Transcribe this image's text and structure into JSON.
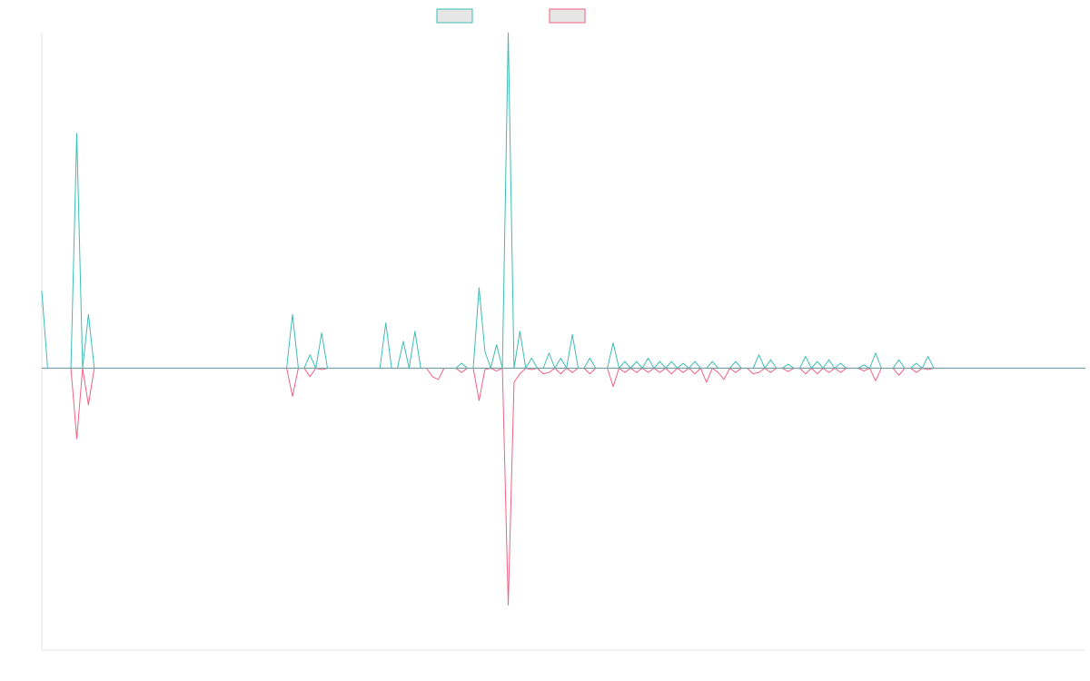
{
  "colors": {
    "series_a": "#3dbdb5",
    "series_b": "#f06283",
    "legend_fill": "#e6e6e6",
    "axis": "#e3e3e3",
    "baseline": "#7a9ea3"
  },
  "chart_data": {
    "type": "line",
    "title": "",
    "xlabel": "",
    "ylabel": "",
    "grid": false,
    "legend_position": "top-center",
    "x_count": 180,
    "ylim": [
      -1,
      1
    ],
    "series": [
      {
        "legend_color": "series_a",
        "sign": 1,
        "points": {
          "0": 0.23,
          "1": 0,
          "5": 0,
          "6": 0.7,
          "7": 0,
          "8": 0.16,
          "9": 0,
          "42": 0,
          "43": 0.16,
          "44": 0,
          "45": 0,
          "46": 0.04,
          "47": 0,
          "48": 0.105,
          "49": 0,
          "58": 0,
          "59": 0.135,
          "60": 0,
          "61": 0,
          "62": 0.08,
          "63": 0,
          "64": 0.11,
          "65": 0,
          "66": 0,
          "67": 0,
          "68": 0,
          "69": 0,
          "70": 0,
          "71": 0,
          "72": 0.015,
          "73": 0,
          "74": 0,
          "75": 0.24,
          "76": 0.05,
          "77": 0,
          "78": 0.07,
          "79": 0,
          "80": 1.0,
          "81": 0,
          "82": 0.11,
          "83": 0,
          "84": 0.03,
          "85": 0,
          "86": 0,
          "87": 0.045,
          "88": 0,
          "89": 0.03,
          "90": 0,
          "91": 0.1,
          "92": 0,
          "93": 0,
          "94": 0.03,
          "95": 0,
          "96": 0,
          "97": 0,
          "98": 0.075,
          "99": 0,
          "100": 0.02,
          "101": 0,
          "102": 0.02,
          "103": 0,
          "104": 0.03,
          "105": 0,
          "106": 0.02,
          "107": 0,
          "108": 0.02,
          "109": 0,
          "110": 0.015,
          "111": 0,
          "112": 0.02,
          "113": 0,
          "114": 0,
          "115": 0.02,
          "116": 0,
          "117": 0,
          "118": 0,
          "119": 0.02,
          "120": 0,
          "121": 0,
          "122": 0,
          "123": 0.04,
          "124": 0,
          "125": 0.025,
          "126": 0,
          "127": 0,
          "128": 0.012,
          "129": 0,
          "130": 0,
          "131": 0.035,
          "132": 0,
          "133": 0.02,
          "134": 0,
          "135": 0.025,
          "136": 0,
          "137": 0.015,
          "138": 0,
          "139": 0,
          "140": 0,
          "141": 0.01,
          "142": 0,
          "143": 0.045,
          "144": 0,
          "145": 0,
          "146": 0,
          "147": 0.025,
          "148": 0,
          "149": 0,
          "150": 0.015,
          "151": 0,
          "152": 0.035,
          "153": 0
        }
      },
      {
        "legend_color": "series_b",
        "sign": -1,
        "points": {
          "0": 0,
          "5": 0,
          "6": 0.25,
          "7": 0,
          "8": 0.13,
          "9": 0,
          "42": 0,
          "43": 0.1,
          "44": 0,
          "45": 0,
          "46": 0.03,
          "47": 0,
          "48": 0.005,
          "49": 0,
          "66": 0,
          "67": 0.03,
          "68": 0.04,
          "69": 0,
          "70": 0,
          "71": 0,
          "72": 0.015,
          "73": 0,
          "74": 0,
          "75": 0.115,
          "76": 0.005,
          "77": 0,
          "78": 0.01,
          "79": 0,
          "80": 0.84,
          "81": 0.05,
          "82": 0.02,
          "83": 0,
          "84": 0.005,
          "85": 0,
          "86": 0.02,
          "87": 0.015,
          "88": 0,
          "89": 0.02,
          "90": 0,
          "91": 0.015,
          "92": 0,
          "93": 0,
          "94": 0.02,
          "95": 0,
          "96": 0,
          "97": 0,
          "98": 0.065,
          "99": 0,
          "100": 0.015,
          "101": 0,
          "102": 0.015,
          "103": 0,
          "104": 0.015,
          "105": 0,
          "106": 0.015,
          "107": 0,
          "108": 0.02,
          "109": 0,
          "110": 0.015,
          "111": 0,
          "112": 0.02,
          "113": 0,
          "114": 0.05,
          "115": 0,
          "116": 0.015,
          "117": 0.04,
          "118": 0,
          "119": 0.015,
          "120": 0,
          "121": 0,
          "122": 0.02,
          "123": 0.015,
          "124": 0,
          "125": 0.015,
          "126": 0,
          "127": 0,
          "128": 0.012,
          "129": 0,
          "130": 0,
          "131": 0.02,
          "132": 0,
          "133": 0.02,
          "134": 0,
          "135": 0.015,
          "136": 0,
          "137": 0.015,
          "138": 0,
          "139": 0,
          "140": 0,
          "141": 0.01,
          "142": 0,
          "143": 0.045,
          "144": 0,
          "145": 0,
          "146": 0,
          "147": 0.025,
          "148": 0,
          "149": 0,
          "150": 0.015,
          "151": 0,
          "152": 0.005,
          "153": 0
        }
      }
    ]
  }
}
